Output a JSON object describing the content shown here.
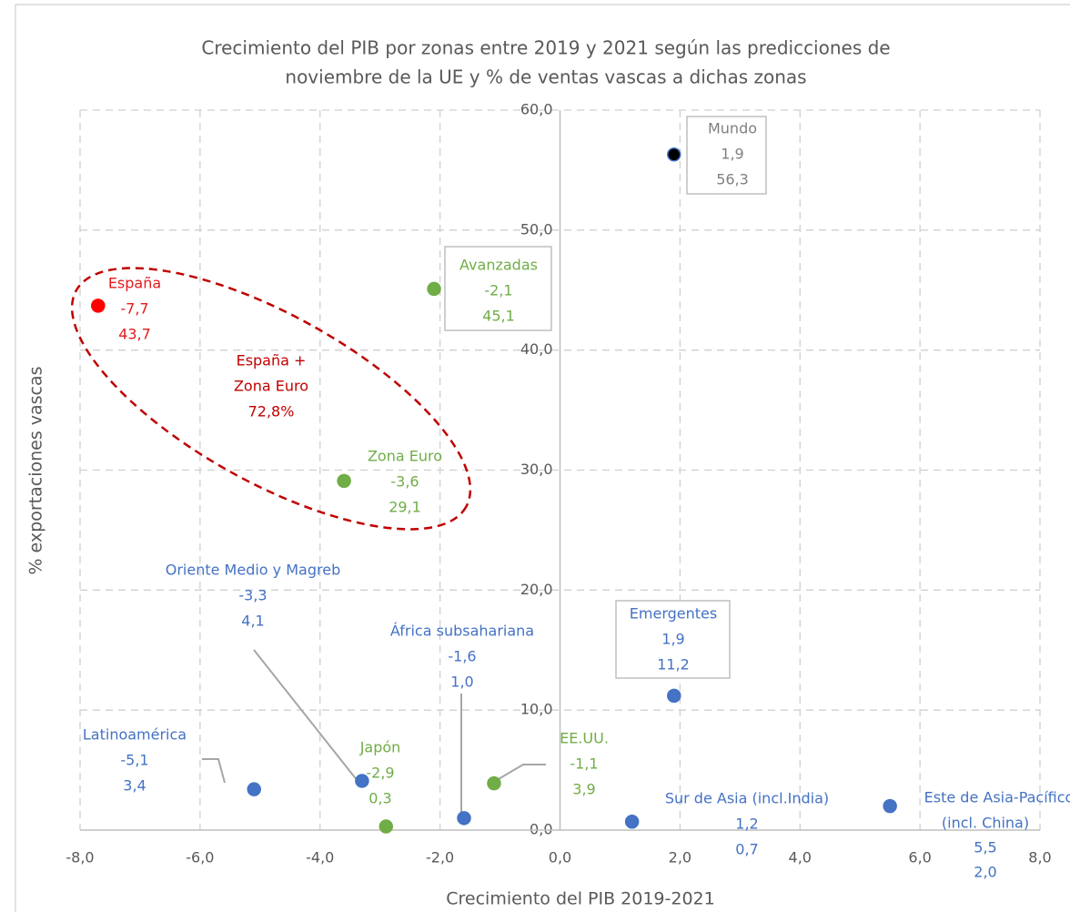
{
  "chart_data": {
    "type": "scatter",
    "title": [
      "Crecimiento del PIB por zonas entre 2019 y 2021 según las predicciones de",
      "noviembre de la UE y % de ventas vascas a dichas zonas"
    ],
    "x_label": "Crecimiento del PIB 2019-2021",
    "y_label": "% exportaciones vascas",
    "xlim": [
      -8,
      8
    ],
    "ylim": [
      0,
      60
    ],
    "xticks": [
      {
        "value": -8,
        "label": "-8,0"
      },
      {
        "value": -6,
        "label": "-6,0"
      },
      {
        "value": -4,
        "label": "-4,0"
      },
      {
        "value": -2,
        "label": "-2,0"
      },
      {
        "value": 0,
        "label": "0,0"
      },
      {
        "value": 2,
        "label": "2,0"
      },
      {
        "value": 4,
        "label": "4,0"
      },
      {
        "value": 6,
        "label": "6,0"
      },
      {
        "value": 8,
        "label": "8,0"
      }
    ],
    "yticks": [
      {
        "value": 0,
        "label": "0,0"
      },
      {
        "value": 10,
        "label": "10,0"
      },
      {
        "value": 20,
        "label": "20,0"
      },
      {
        "value": 30,
        "label": "30,0"
      },
      {
        "value": 40,
        "label": "40,0"
      },
      {
        "value": 50,
        "label": "50,0"
      },
      {
        "value": 60,
        "label": "60,0"
      }
    ],
    "grid": true,
    "annotation": [
      "España +",
      "Zona Euro",
      "72,8%"
    ],
    "points": [
      {
        "name": "Mundo",
        "color": "#000000",
        "label_color": "#808080",
        "x": 1.9,
        "y": 56.3,
        "x_label": "1,9",
        "y_label": "56,3"
      },
      {
        "name": "España",
        "color": "#ff0000",
        "label_color": "#e31a1c",
        "x": -7.7,
        "y": 43.7,
        "x_label": "-7,7",
        "y_label": "43,7"
      },
      {
        "name": "Avanzadas",
        "color": "#70ad47",
        "label_color": "#70ad47",
        "x": -2.1,
        "y": 45.1,
        "x_label": "-2,1",
        "y_label": "45,1"
      },
      {
        "name": "Zona Euro",
        "color": "#70ad47",
        "label_color": "#70ad47",
        "x": -3.6,
        "y": 29.1,
        "x_label": "-3,6",
        "y_label": "29,1"
      },
      {
        "name": "Oriente Medio y Magreb",
        "color": "#4472c4",
        "label_color": "#4472c4",
        "x": -3.3,
        "y": 4.1,
        "x_label": "-3,3",
        "y_label": "4,1"
      },
      {
        "name": "África subsahariana",
        "color": "#4472c4",
        "label_color": "#4472c4",
        "x": -1.6,
        "y": 1.0,
        "x_label": "-1,6",
        "y_label": "1,0"
      },
      {
        "name": "Emergentes",
        "color": "#4472c4",
        "label_color": "#4472c4",
        "x": 1.9,
        "y": 11.2,
        "x_label": "1,9",
        "y_label": "11,2"
      },
      {
        "name": "Latinoamérica",
        "color": "#4472c4",
        "label_color": "#4472c4",
        "x": -5.1,
        "y": 3.4,
        "x_label": "-5,1",
        "y_label": "3,4"
      },
      {
        "name": "Japón",
        "color": "#70ad47",
        "label_color": "#70ad47",
        "x": -2.9,
        "y": 0.3,
        "x_label": "-2,9",
        "y_label": "0,3"
      },
      {
        "name": "EE.UU.",
        "color": "#70ad47",
        "label_color": "#70ad47",
        "x": -1.1,
        "y": 3.9,
        "x_label": "-1,1",
        "y_label": "3,9"
      },
      {
        "name": "Sur de Asia (incl.India)",
        "color": "#4472c4",
        "label_color": "#4472c4",
        "x": 1.2,
        "y": 0.7,
        "x_label": "1,2",
        "y_label": "0,7"
      },
      {
        "name": [
          "Este de Asia-Pacífico",
          "(incl. China)"
        ],
        "color": "#4472c4",
        "label_color": "#4472c4",
        "x": 5.5,
        "y": 2.0,
        "x_label": "5,5",
        "y_label": "2,0"
      }
    ]
  }
}
